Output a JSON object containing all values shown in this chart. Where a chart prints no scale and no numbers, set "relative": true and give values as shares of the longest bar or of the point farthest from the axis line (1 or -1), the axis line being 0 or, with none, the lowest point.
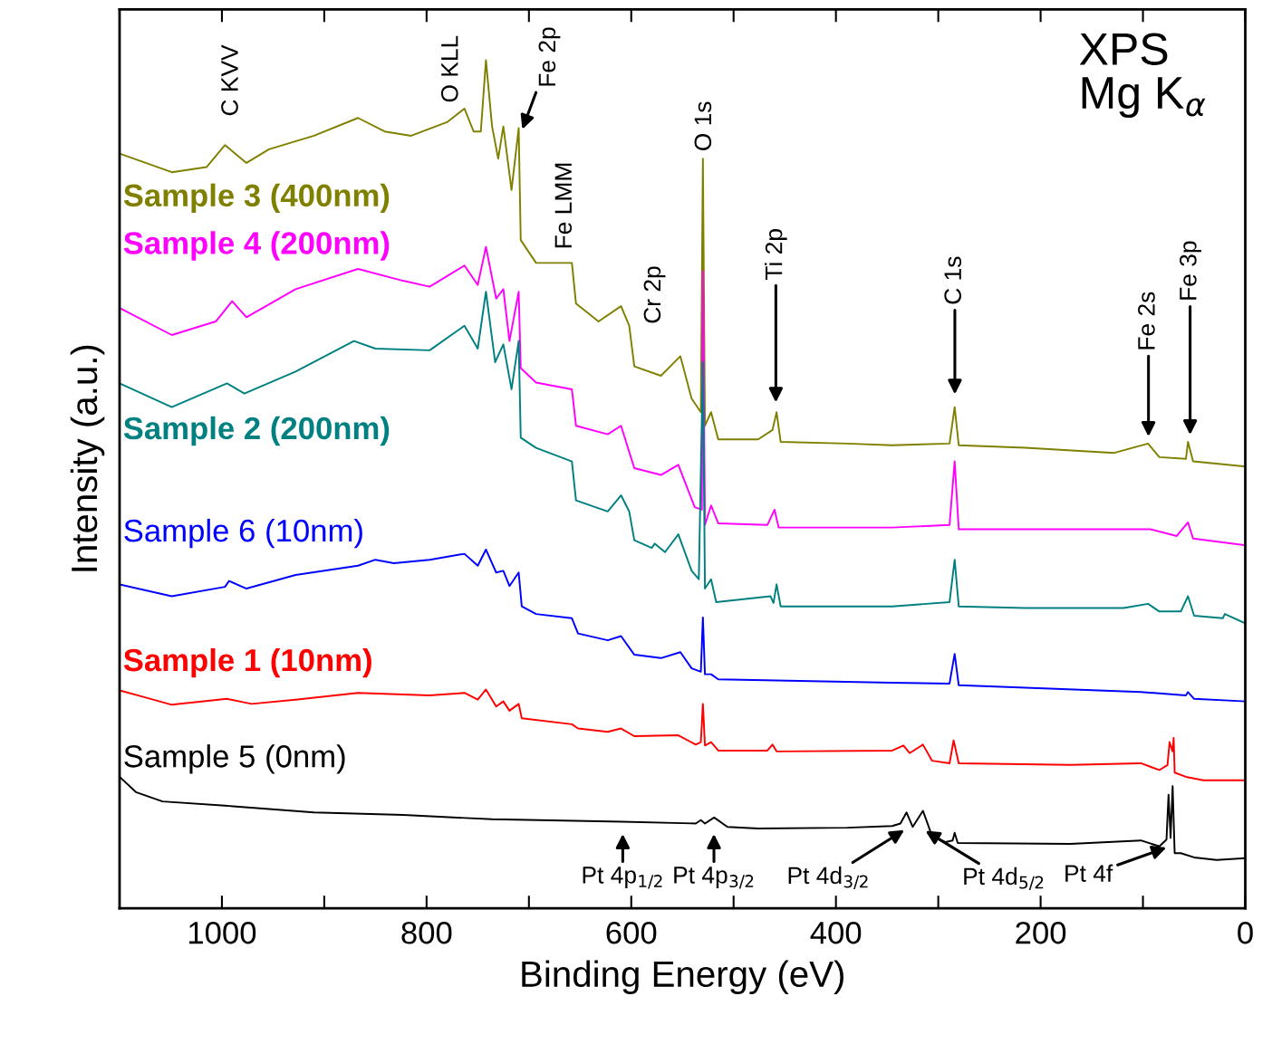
{
  "chart_data": {
    "type": "line",
    "title": "XPS\nMg K$_{α}$",
    "xlabel": "Binding Energy (eV)",
    "ylabel": "Intensity (a.u.)",
    "relative": true,
    "grid": false,
    "legend": false,
    "xlim": [
      1100,
      0
    ],
    "xticks": [
      1000,
      {
        "value": 900,
        "label": null
      },
      800,
      {
        "value": 700,
        "label": null
      },
      600,
      {
        "value": 500,
        "label": null
      },
      400,
      {
        "value": 300,
        "label": null
      },
      200,
      {
        "value": 100,
        "label": null
      },
      0
    ],
    "series": [
      {
        "name": "Sample 3 (400nm)",
        "color": "#808000",
        "x": [
          1100,
          1049,
          1015,
          997,
          976,
          954,
          910,
          867,
          841,
          815,
          780,
          763,
          754,
          747,
          742,
          736,
          730,
          725,
          717,
          710,
          708,
          693,
          680,
          658,
          654,
          632,
          610,
          602,
          597,
          571,
          552,
          541,
          532,
          530,
          528,
          522,
          515,
          476,
          462,
          458,
          454,
          389,
          345,
          289,
          284,
          280,
          215,
          128,
          95,
          84,
          58,
          56,
          51,
          0
        ],
        "values": [
          0.89,
          0.868,
          0.874,
          0.9,
          0.879,
          0.895,
          0.911,
          0.932,
          0.916,
          0.911,
          0.927,
          0.943,
          0.916,
          0.916,
          1.0,
          0.922,
          0.884,
          0.922,
          0.847,
          0.92,
          0.788,
          0.761,
          0.761,
          0.761,
          0.713,
          0.692,
          0.71,
          0.687,
          0.639,
          0.628,
          0.651,
          0.601,
          0.585,
          0.884,
          0.569,
          0.585,
          0.553,
          0.553,
          0.564,
          0.585,
          0.55,
          0.548,
          0.546,
          0.548,
          0.591,
          0.546,
          0.543,
          0.537,
          0.548,
          0.532,
          0.53,
          0.55,
          0.527,
          0.521
        ]
      },
      {
        "name": "Sample 4 (200nm)",
        "color": "#ff00ff",
        "x": [
          1100,
          1049,
          1006,
          990,
          976,
          928,
          867,
          823,
          797,
          763,
          750,
          742,
          732,
          725,
          719,
          710,
          708,
          693,
          658,
          654,
          623,
          610,
          597,
          571,
          554,
          538,
          531,
          530,
          528,
          522,
          515,
          467,
          460,
          456,
          345,
          289,
          284,
          280,
          215,
          93,
          67,
          56,
          51,
          0
        ],
        "values": [
          0.708,
          0.676,
          0.692,
          0.716,
          0.697,
          0.73,
          0.754,
          0.74,
          0.733,
          0.758,
          0.735,
          0.78,
          0.719,
          0.73,
          0.669,
          0.727,
          0.637,
          0.62,
          0.612,
          0.569,
          0.559,
          0.569,
          0.519,
          0.511,
          0.523,
          0.473,
          0.47,
          0.751,
          0.452,
          0.475,
          0.454,
          0.452,
          0.47,
          0.449,
          0.449,
          0.452,
          0.527,
          0.447,
          0.447,
          0.447,
          0.439,
          0.455,
          0.436,
          0.428
        ]
      },
      {
        "name": "Sample 2 (200nm)",
        "color": "#008080",
        "x": [
          1100,
          1049,
          995,
          978,
          928,
          871,
          850,
          797,
          763,
          750,
          742,
          733,
          725,
          717,
          710,
          708,
          693,
          658,
          654,
          623,
          610,
          602,
          597,
          580,
          577,
          567,
          554,
          541,
          534,
          530,
          528,
          522,
          517,
          464,
          461,
          458,
          454,
          345,
          289,
          284,
          280,
          215,
          119,
          95,
          84,
          63,
          56,
          50,
          22,
          20,
          0
        ],
        "values": [
          0.619,
          0.591,
          0.619,
          0.607,
          0.633,
          0.669,
          0.66,
          0.658,
          0.687,
          0.66,
          0.727,
          0.644,
          0.665,
          0.612,
          0.669,
          0.555,
          0.543,
          0.527,
          0.481,
          0.468,
          0.487,
          0.468,
          0.434,
          0.425,
          0.43,
          0.42,
          0.441,
          0.398,
          0.388,
          0.644,
          0.377,
          0.388,
          0.361,
          0.368,
          0.36,
          0.382,
          0.356,
          0.356,
          0.361,
          0.411,
          0.356,
          0.354,
          0.354,
          0.359,
          0.35,
          0.35,
          0.368,
          0.345,
          0.342,
          0.347,
          0.336
        ]
      },
      {
        "name": "Sample 6 (10nm)",
        "color": "#0000ff",
        "x": [
          1100,
          1049,
          997,
          993,
          976,
          928,
          867,
          850,
          832,
          797,
          763,
          750,
          742,
          732,
          725,
          719,
          710,
          707,
          693,
          658,
          652,
          623,
          610,
          597,
          571,
          552,
          541,
          532,
          530,
          528,
          522,
          515,
          345,
          289,
          284,
          280,
          102,
          58,
          56,
          50,
          0
        ],
        "values": [
          0.382,
          0.368,
          0.379,
          0.386,
          0.377,
          0.393,
          0.404,
          0.411,
          0.407,
          0.411,
          0.418,
          0.404,
          0.423,
          0.396,
          0.398,
          0.38,
          0.396,
          0.356,
          0.347,
          0.342,
          0.324,
          0.316,
          0.321,
          0.299,
          0.295,
          0.302,
          0.283,
          0.279,
          0.343,
          0.276,
          0.276,
          0.27,
          0.266,
          0.265,
          0.3,
          0.263,
          0.255,
          0.251,
          0.255,
          0.247,
          0.244
        ]
      },
      {
        "name": "Sample 1 (10nm)",
        "color": "#ff0000",
        "x": [
          1100,
          1076,
          1049,
          995,
          971,
          928,
          867,
          797,
          763,
          750,
          742,
          732,
          725,
          719,
          710,
          707,
          658,
          652,
          623,
          610,
          597,
          554,
          537,
          532,
          530,
          528,
          522,
          515,
          467,
          462,
          458,
          345,
          334,
          328,
          315,
          306,
          289,
          285,
          280,
          171,
          102,
          84,
          76,
          74,
          71,
          70,
          69,
          58,
          41,
          0
        ],
        "values": [
          0.257,
          0.249,
          0.24,
          0.247,
          0.241,
          0.246,
          0.254,
          0.251,
          0.254,
          0.246,
          0.258,
          0.238,
          0.244,
          0.233,
          0.241,
          0.224,
          0.217,
          0.212,
          0.208,
          0.212,
          0.203,
          0.204,
          0.193,
          0.196,
          0.241,
          0.192,
          0.196,
          0.186,
          0.186,
          0.193,
          0.185,
          0.186,
          0.192,
          0.183,
          0.193,
          0.174,
          0.171,
          0.198,
          0.171,
          0.169,
          0.171,
          0.163,
          0.169,
          0.196,
          0.185,
          0.201,
          0.16,
          0.155,
          0.151,
          0.151
        ]
      },
      {
        "name": "Sample 5 (0nm)",
        "color": "#000000",
        "x": [
          1100,
          1084,
          1058,
          997,
          910,
          823,
          736,
          609,
          537,
          532,
          528,
          519,
          506,
          476,
          389,
          345,
          337,
          331,
          325,
          315,
          306,
          293,
          286,
          284,
          281,
          171,
          102,
          84,
          77,
          75,
          73,
          71,
          69,
          63,
          50,
          28,
          0
        ],
        "values": [
          0.155,
          0.137,
          0.126,
          0.121,
          0.113,
          0.11,
          0.105,
          0.102,
          0.1,
          0.104,
          0.1,
          0.107,
          0.096,
          0.094,
          0.095,
          0.097,
          0.1,
          0.113,
          0.096,
          0.115,
          0.085,
          0.078,
          0.08,
          0.089,
          0.077,
          0.076,
          0.08,
          0.073,
          0.081,
          0.134,
          0.083,
          0.144,
          0.065,
          0.065,
          0.06,
          0.057,
          0.059
        ]
      }
    ],
    "annotations": [
      "C KVV",
      "O KLL",
      "Fe 2p",
      "Fe LMM",
      "O 1s",
      "Cr 2p",
      "Ti 2p",
      "C 1s",
      "Fe 2s",
      "Fe 3p",
      "Pt 4p$_{1/2}$",
      "Pt 4p$_{3/2}$",
      "Pt 4d$_{3/2}$",
      "Pt 4d$_{5/2}$",
      "Pt 4f"
    ]
  }
}
